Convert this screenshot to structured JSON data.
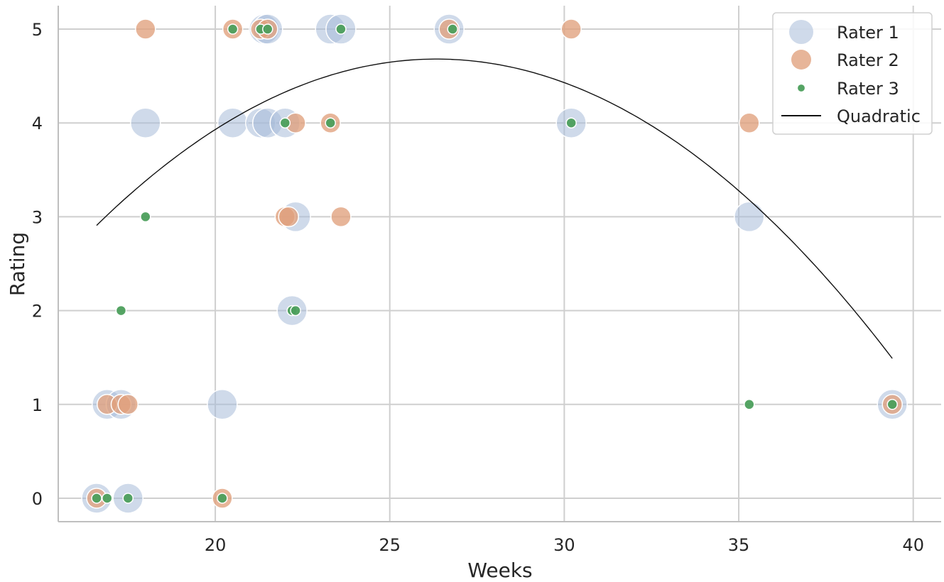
{
  "chart_data": {
    "type": "scatter",
    "title": "",
    "xlabel": "Weeks",
    "ylabel": "Rating",
    "xlim": [
      15.5,
      40.8
    ],
    "ylim": [
      -0.25,
      5.25
    ],
    "xticks": [
      20,
      25,
      30,
      35,
      40
    ],
    "yticks": [
      0,
      1,
      2,
      3,
      4,
      5
    ],
    "grid": true,
    "legend_position": "top-right",
    "colors": {
      "rater1": "#a7bcd9",
      "rater2": "#e0a07c",
      "rater3": "#4c9f5c",
      "quadratic": "#111111",
      "grid": "#cfcfcf",
      "axis": "#bfbfbf"
    },
    "series": [
      {
        "name": "Rater 1",
        "points": [
          [
            16.6,
            0
          ],
          [
            17.5,
            0
          ],
          [
            16.9,
            1
          ],
          [
            17.3,
            1
          ],
          [
            20.2,
            1
          ],
          [
            22.2,
            2
          ],
          [
            22.3,
            3
          ],
          [
            18.0,
            4
          ],
          [
            20.5,
            4
          ],
          [
            21.3,
            4
          ],
          [
            21.5,
            4
          ],
          [
            22.0,
            4
          ],
          [
            30.2,
            4
          ],
          [
            21.4,
            5
          ],
          [
            21.5,
            5
          ],
          [
            23.3,
            5
          ],
          [
            23.6,
            5
          ],
          [
            26.7,
            5
          ],
          [
            35.3,
            3
          ],
          [
            39.4,
            1
          ]
        ]
      },
      {
        "name": "Rater 2",
        "points": [
          [
            16.6,
            0
          ],
          [
            20.2,
            0
          ],
          [
            16.9,
            1
          ],
          [
            17.3,
            1
          ],
          [
            17.5,
            1
          ],
          [
            22.0,
            3
          ],
          [
            22.1,
            3
          ],
          [
            23.6,
            3
          ],
          [
            22.3,
            4
          ],
          [
            23.3,
            4
          ],
          [
            35.3,
            4
          ],
          [
            18.0,
            5
          ],
          [
            20.5,
            5
          ],
          [
            21.3,
            5
          ],
          [
            21.5,
            5
          ],
          [
            26.7,
            5
          ],
          [
            30.2,
            5
          ],
          [
            39.4,
            1
          ]
        ]
      },
      {
        "name": "Rater 3",
        "points": [
          [
            16.6,
            0
          ],
          [
            16.9,
            0
          ],
          [
            17.5,
            0
          ],
          [
            20.2,
            0
          ],
          [
            39.4,
            1
          ],
          [
            35.3,
            1
          ],
          [
            17.3,
            2
          ],
          [
            22.2,
            2
          ],
          [
            22.3,
            2
          ],
          [
            18.0,
            3
          ],
          [
            22.0,
            4
          ],
          [
            23.3,
            4
          ],
          [
            30.2,
            4
          ],
          [
            20.5,
            5
          ],
          [
            21.3,
            5
          ],
          [
            21.5,
            5
          ],
          [
            23.6,
            5
          ],
          [
            26.8,
            5
          ]
        ]
      }
    ],
    "fit": {
      "name": "Quadratic",
      "coefficients": [
        -0.0187,
        0.985,
        -8.29
      ],
      "x_range": [
        16.6,
        39.4
      ]
    }
  }
}
